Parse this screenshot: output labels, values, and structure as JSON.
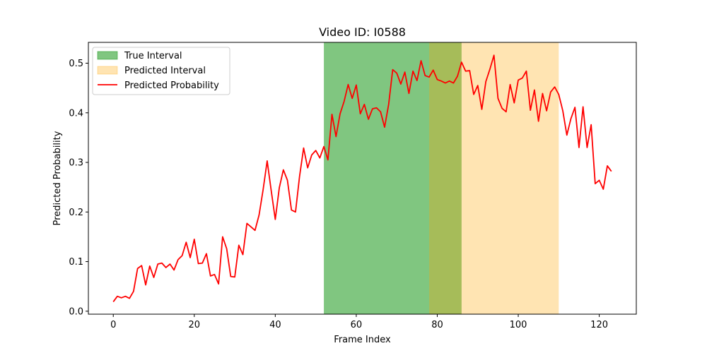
{
  "chart_data": {
    "type": "line",
    "title": "Video ID: I0588",
    "xlabel": "Frame Index",
    "ylabel": "Predicted Probability",
    "xlim": [
      -6.15,
      129.15
    ],
    "ylim": [
      -0.006,
      0.542
    ],
    "xticks": [
      0,
      20,
      40,
      60,
      80,
      100,
      120
    ],
    "yticks": [
      0.0,
      0.1,
      0.2,
      0.3,
      0.4,
      0.5
    ],
    "xtick_labels": [
      "0",
      "20",
      "40",
      "60",
      "80",
      "100",
      "120"
    ],
    "ytick_labels": [
      "0.0",
      "0.1",
      "0.2",
      "0.3",
      "0.4",
      "0.5"
    ],
    "grid": false,
    "legend_position": "top-left",
    "intervals": [
      {
        "name": "True Interval",
        "start": 52,
        "end": 86,
        "color": "#2ca02c",
        "opacity": 0.6
      },
      {
        "name": "Predicted Interval",
        "start": 78,
        "end": 110,
        "color": "#ffa500",
        "opacity": 0.3
      }
    ],
    "series": [
      {
        "name": "Predicted Probability",
        "color": "#ff0000",
        "x": [
          0,
          1,
          2,
          3,
          4,
          5,
          6,
          7,
          8,
          9,
          10,
          11,
          12,
          13,
          14,
          15,
          16,
          17,
          18,
          19,
          20,
          21,
          22,
          23,
          24,
          25,
          26,
          27,
          28,
          29,
          30,
          31,
          32,
          33,
          34,
          35,
          36,
          37,
          38,
          39,
          40,
          41,
          42,
          43,
          44,
          45,
          46,
          47,
          48,
          49,
          50,
          51,
          52,
          53,
          54,
          55,
          56,
          57,
          58,
          59,
          60,
          61,
          62,
          63,
          64,
          65,
          66,
          67,
          68,
          69,
          70,
          71,
          72,
          73,
          74,
          75,
          76,
          77,
          78,
          79,
          80,
          81,
          82,
          83,
          84,
          85,
          86,
          87,
          88,
          89,
          90,
          91,
          92,
          93,
          94,
          95,
          96,
          97,
          98,
          99,
          100,
          101,
          102,
          103,
          104,
          105,
          106,
          107,
          108,
          109,
          110,
          111,
          112,
          113,
          114,
          115,
          116,
          117,
          118,
          119,
          120,
          121,
          122,
          123
        ],
        "values": [
          0.019,
          0.03,
          0.027,
          0.03,
          0.026,
          0.04,
          0.086,
          0.092,
          0.053,
          0.091,
          0.068,
          0.095,
          0.097,
          0.088,
          0.095,
          0.083,
          0.104,
          0.112,
          0.139,
          0.108,
          0.145,
          0.096,
          0.097,
          0.116,
          0.071,
          0.074,
          0.055,
          0.15,
          0.126,
          0.07,
          0.069,
          0.133,
          0.114,
          0.177,
          0.17,
          0.163,
          0.194,
          0.245,
          0.303,
          0.243,
          0.185,
          0.249,
          0.285,
          0.264,
          0.204,
          0.2,
          0.272,
          0.329,
          0.289,
          0.315,
          0.324,
          0.309,
          0.332,
          0.305,
          0.397,
          0.352,
          0.398,
          0.423,
          0.457,
          0.429,
          0.456,
          0.398,
          0.417,
          0.387,
          0.408,
          0.41,
          0.402,
          0.371,
          0.417,
          0.487,
          0.48,
          0.458,
          0.482,
          0.439,
          0.484,
          0.465,
          0.505,
          0.475,
          0.472,
          0.486,
          0.467,
          0.464,
          0.46,
          0.464,
          0.46,
          0.474,
          0.502,
          0.484,
          0.485,
          0.437,
          0.455,
          0.407,
          0.463,
          0.488,
          0.516,
          0.429,
          0.409,
          0.402,
          0.457,
          0.42,
          0.466,
          0.47,
          0.484,
          0.405,
          0.446,
          0.383,
          0.439,
          0.404,
          0.442,
          0.452,
          0.437,
          0.404,
          0.355,
          0.388,
          0.411,
          0.33,
          0.412,
          0.33,
          0.376,
          0.257,
          0.264,
          0.246,
          0.293,
          0.282
        ]
      }
    ]
  }
}
